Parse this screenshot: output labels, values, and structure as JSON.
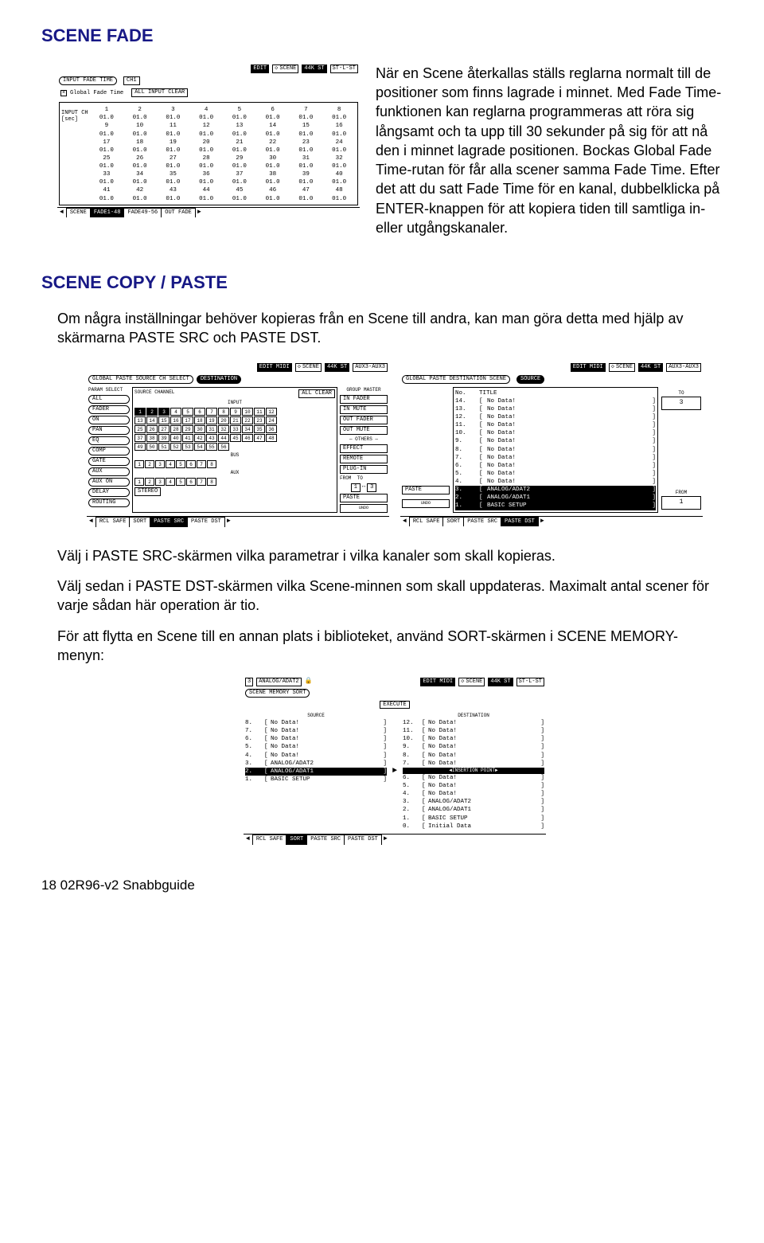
{
  "colors": {
    "heading": "#171885",
    "text": "#000000",
    "bg": "#ffffff"
  },
  "headings": {
    "scene_fade": "SCENE FADE",
    "scene_copy_paste": "SCENE COPY / PASTE"
  },
  "paragraphs": {
    "p1": "När en Scene återkallas ställs reglarna normalt till de positioner som finns lagrade i minnet. Med Fade Time-funktionen kan reglarna programmeras att röra sig långsamt och ta upp till 30 sekunder på sig för att nå den i minnet lagrade positionen. Bockas Global Fade Time-rutan för får alla scener samma Fade Time. Efter det att du satt Fade Time för en kanal, dubbelklicka på ENTER-knappen för att kopiera tiden till samtliga in- eller utgångskanaler.",
    "p2": "Om några inställningar behöver kopieras från en Scene till andra, kan man göra detta med hjälp av skärmarna PASTE SRC och PASTE DST.",
    "p3": "Välj i PASTE SRC-skärmen vilka parametrar i vilka kanaler som skall kopieras.",
    "p4": "Välj sedan i PASTE DST-skärmen vilka Scene-minnen som skall uppdateras. Maximalt antal scener för varje sådan här operation är tio.",
    "p5": "För att flytta en Scene till en annan plats i biblioteket, använd SORT-skärmen i SCENE MEMORY-menyn:"
  },
  "footer": "18   02R96-v2 Snabbguide",
  "lcd_fade": {
    "edit_badge": "EDIT",
    "title": "SCENE",
    "rate_badge": "44K ST",
    "channel": "ST-L-ST",
    "input_fade_time": "INPUT FADE TIME",
    "ch_label": "CH1",
    "global_fade": "Global Fade Time",
    "all_input_clear": "ALL INPUT CLEAR",
    "side_label": "INPUT CH [sec]",
    "rows": [
      {
        "headers": [
          "1",
          "2",
          "3",
          "4",
          "5",
          "6",
          "7",
          "8"
        ],
        "values": [
          "01.0",
          "01.0",
          "01.0",
          "01.0",
          "01.0",
          "01.0",
          "01.0",
          "01.0"
        ]
      },
      {
        "headers": [
          "9",
          "10",
          "11",
          "12",
          "13",
          "14",
          "15",
          "16"
        ],
        "values": [
          "01.0",
          "01.0",
          "01.0",
          "01.0",
          "01.0",
          "01.0",
          "01.0",
          "01.0"
        ]
      },
      {
        "headers": [
          "17",
          "18",
          "19",
          "20",
          "21",
          "22",
          "23",
          "24"
        ],
        "values": [
          "01.0",
          "01.0",
          "01.0",
          "01.0",
          "01.0",
          "01.0",
          "01.0",
          "01.0"
        ]
      },
      {
        "headers": [
          "25",
          "26",
          "27",
          "28",
          "29",
          "30",
          "31",
          "32"
        ],
        "values": [
          "01.0",
          "01.0",
          "01.0",
          "01.0",
          "01.0",
          "01.0",
          "01.0",
          "01.0"
        ]
      },
      {
        "headers": [
          "33",
          "34",
          "35",
          "36",
          "37",
          "38",
          "39",
          "40"
        ],
        "values": [
          "01.0",
          "01.0",
          "01.0",
          "01.0",
          "01.0",
          "01.0",
          "01.0",
          "01.0"
        ]
      },
      {
        "headers": [
          "41",
          "42",
          "43",
          "44",
          "45",
          "46",
          "47",
          "48"
        ],
        "values": [
          "01.0",
          "01.0",
          "01.0",
          "01.0",
          "01.0",
          "01.0",
          "01.0",
          "01.0"
        ]
      }
    ],
    "tabs": [
      "SCENE",
      "FADE1-48",
      "FADE49-56",
      "OUT FADE"
    ]
  },
  "lcd_src": {
    "edit_badge": "EDIT MIDI",
    "title": "SCENE",
    "rate_badge": "44K ST",
    "channel": "AUX3-AUX3",
    "header": "GLOBAL PASTE SOURCE CH SELECT",
    "dest_tab": "DESTINATION",
    "param_label": "PARAM SELECT",
    "params": [
      "ALL",
      "FADER",
      "ON",
      "PAN",
      "EQ",
      "COMP",
      "GATE",
      "AUX",
      "AUX ON",
      "DELAY",
      "ROUTING"
    ],
    "source_channel": "SOURCE CHANNEL",
    "all_clear": "ALL CLEAR",
    "input_label": "INPUT",
    "input_nums": [
      1,
      2,
      3,
      4,
      5,
      6,
      7,
      8,
      9,
      10,
      11,
      12,
      13,
      14,
      15,
      16,
      17,
      18,
      19,
      20,
      21,
      22,
      23,
      24,
      25,
      26,
      27,
      28,
      29,
      30,
      31,
      32,
      33,
      34,
      35,
      36,
      37,
      38,
      39,
      40,
      41,
      42,
      43,
      44,
      45,
      46,
      47,
      48,
      49,
      50,
      51,
      52,
      53,
      54,
      55,
      56
    ],
    "input_selected": [
      1,
      2,
      3
    ],
    "bus_label": "BUS",
    "bus_nums": [
      1,
      2,
      3,
      4,
      5,
      6,
      7,
      8
    ],
    "aux_label": "AUX",
    "aux_nums": [
      1,
      2,
      3,
      4,
      5,
      6,
      7,
      8
    ],
    "stereo_label": "STEREO",
    "group_master": "GROUP MASTER",
    "groups": [
      "IN FADER",
      "IN MUTE",
      "OUT FADER",
      "OUT MUTE"
    ],
    "others_label": "OTHERS",
    "others": [
      "EFFECT",
      "REMOTE",
      "PLUG-IN"
    ],
    "from_label": "FROM",
    "to_label": "TO",
    "from": "1",
    "to": "3",
    "paste": "PASTE",
    "undo": "UNDO",
    "tabs": [
      "RCL SAFE",
      "SORT",
      "PASTE SRC",
      "PASTE DST"
    ]
  },
  "lcd_dst": {
    "edit_badge": "EDIT MIDI",
    "title": "SCENE",
    "rate_badge": "44K ST",
    "channel": "AUX3-AUX3",
    "header": "GLOBAL PASTE DESTINATION SCENE",
    "source_tab": "SOURCE",
    "no_label": "No.",
    "title_label": "TITLE",
    "to_label": "TO",
    "to_value": "3",
    "from_label": "FROM",
    "from_value": "1",
    "paste": "PASTE",
    "undo": "UNDO",
    "list": [
      {
        "no": "14.",
        "title": "No Data!",
        "sel": false
      },
      {
        "no": "13.",
        "title": "No Data!",
        "sel": false
      },
      {
        "no": "12.",
        "title": "No Data!",
        "sel": false
      },
      {
        "no": "11.",
        "title": "No Data!",
        "sel": false
      },
      {
        "no": "10.",
        "title": "No Data!",
        "sel": false
      },
      {
        "no": "9.",
        "title": "No Data!",
        "sel": false
      },
      {
        "no": "8.",
        "title": "No Data!",
        "sel": false
      },
      {
        "no": "7.",
        "title": "No Data!",
        "sel": false
      },
      {
        "no": "6.",
        "title": "No Data!",
        "sel": false
      },
      {
        "no": "5.",
        "title": "No Data!",
        "sel": false
      },
      {
        "no": "4.",
        "title": "No Data!",
        "sel": false
      },
      {
        "no": "3.",
        "title": "ANALOG/ADAT2",
        "sel": true
      },
      {
        "no": "2.",
        "title": "ANALOG/ADAT1",
        "sel": true
      },
      {
        "no": "1.",
        "title": "BASIC SETUP",
        "sel": true
      }
    ],
    "tabs": [
      "RCL SAFE",
      "SORT",
      "PASTE SRC",
      "PASTE DST"
    ]
  },
  "lcd_sort": {
    "scene_num": "3",
    "scene_name": "ANALOG/ADAT2",
    "lock_icon": true,
    "edit_badge": "EDIT MIDI",
    "title": "SCENE",
    "rate_badge": "44K ST",
    "channel": "ST-L-ST",
    "header": "SCENE MEMORY SORT",
    "execute": "EXECUTE",
    "source_label": "SOURCE",
    "dest_label": "DESTINATION",
    "source_list": [
      {
        "no": "8.",
        "title": "No Data!",
        "sel": false
      },
      {
        "no": "7.",
        "title": "No Data!",
        "sel": false
      },
      {
        "no": "6.",
        "title": "No Data!",
        "sel": false
      },
      {
        "no": "5.",
        "title": "No Data!",
        "sel": false
      },
      {
        "no": "4.",
        "title": "No Data!",
        "sel": false
      },
      {
        "no": "3.",
        "title": "ANALOG/ADAT2",
        "sel": false
      },
      {
        "no": "2.",
        "title": "ANALOG/ADAT1",
        "sel": true
      },
      {
        "no": "1.",
        "title": "BASIC SETUP",
        "sel": false
      }
    ],
    "dest_list_top": [
      {
        "no": "12.",
        "title": "No Data!"
      },
      {
        "no": "11.",
        "title": "No Data!"
      },
      {
        "no": "10.",
        "title": "No Data!"
      },
      {
        "no": "9.",
        "title": "No Data!"
      },
      {
        "no": "8.",
        "title": "No Data!"
      },
      {
        "no": "7.",
        "title": "No Data!"
      }
    ],
    "insertion": "INSERTION POINT",
    "dest_list_bottom": [
      {
        "no": "6.",
        "title": "No Data!"
      },
      {
        "no": "5.",
        "title": "No Data!"
      },
      {
        "no": "4.",
        "title": "No Data!"
      },
      {
        "no": "3.",
        "title": "ANALOG/ADAT2"
      },
      {
        "no": "2.",
        "title": "ANALOG/ADAT1"
      },
      {
        "no": "1.",
        "title": "BASIC SETUP"
      },
      {
        "no": "0.",
        "title": "Initial Data"
      }
    ],
    "tabs": [
      "RCL SAFE",
      "SORT",
      "PASTE SRC",
      "PASTE DST"
    ]
  }
}
